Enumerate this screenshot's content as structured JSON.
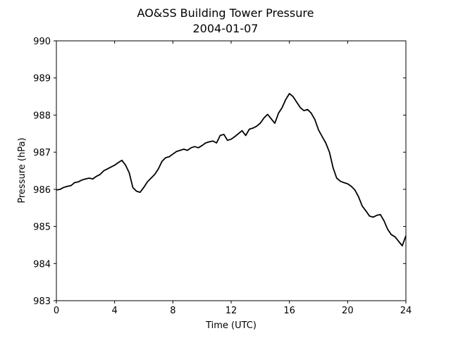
{
  "chart_data": {
    "type": "line",
    "title": "AO&SS Building Tower Pressure",
    "subtitle": "2004-01-07",
    "xlabel": "Time (UTC)",
    "ylabel": "Pressure (hPa)",
    "xlim": [
      0,
      24
    ],
    "ylim": [
      983,
      990
    ],
    "xticks": [
      0,
      4,
      8,
      12,
      16,
      20,
      24
    ],
    "yticks": [
      983,
      984,
      985,
      986,
      987,
      988,
      989,
      990
    ],
    "grid": false,
    "line_color": "#000000",
    "series": [
      {
        "x": [
          0,
          0.25,
          0.5,
          0.75,
          1.0,
          1.25,
          1.5,
          1.75,
          2.0,
          2.25,
          2.5,
          2.75,
          3.0,
          3.25,
          3.5,
          3.75,
          4.0,
          4.25,
          4.5,
          4.75,
          5.0,
          5.25,
          5.5,
          5.75,
          6.0,
          6.25,
          6.5,
          6.75,
          7.0,
          7.25,
          7.5,
          7.75,
          8.0,
          8.25,
          8.5,
          8.75,
          9.0,
          9.25,
          9.5,
          9.75,
          10.0,
          10.25,
          10.5,
          10.75,
          11.0,
          11.25,
          11.5,
          11.75,
          12.0,
          12.25,
          12.5,
          12.75,
          13.0,
          13.25,
          13.5,
          13.75,
          14.0,
          14.25,
          14.5,
          14.75,
          15.0,
          15.25,
          15.5,
          15.75,
          16.0,
          16.25,
          16.5,
          16.75,
          17.0,
          17.25,
          17.5,
          17.75,
          18.0,
          18.25,
          18.5,
          18.75,
          19.0,
          19.25,
          19.5,
          19.75,
          20.0,
          20.25,
          20.5,
          20.75,
          21.0,
          21.25,
          21.5,
          21.75,
          22.0,
          22.25,
          22.5,
          22.75,
          23.0,
          23.25,
          23.5,
          23.75,
          24.0
        ],
        "y": [
          985.98,
          986.0,
          986.05,
          986.08,
          986.1,
          986.18,
          986.2,
          986.25,
          986.28,
          986.3,
          986.28,
          986.35,
          986.4,
          986.5,
          986.55,
          986.6,
          986.65,
          986.72,
          986.78,
          986.65,
          986.45,
          986.05,
          985.95,
          985.92,
          986.05,
          986.2,
          986.3,
          986.4,
          986.55,
          986.75,
          986.85,
          986.88,
          986.95,
          987.02,
          987.05,
          987.08,
          987.05,
          987.12,
          987.15,
          987.12,
          987.18,
          987.25,
          987.28,
          987.3,
          987.25,
          987.45,
          987.48,
          987.32,
          987.35,
          987.42,
          987.5,
          987.58,
          987.45,
          987.62,
          987.65,
          987.7,
          987.78,
          987.92,
          988.02,
          987.9,
          987.78,
          988.05,
          988.2,
          988.42,
          988.58,
          988.5,
          988.35,
          988.2,
          988.12,
          988.15,
          988.05,
          987.88,
          987.6,
          987.42,
          987.25,
          987.0,
          986.58,
          986.3,
          986.22,
          986.18,
          986.15,
          986.08,
          985.98,
          985.8,
          985.55,
          985.42,
          985.28,
          985.25,
          985.3,
          985.32,
          985.15,
          984.92,
          984.78,
          984.72,
          984.6,
          984.48,
          984.75
        ]
      }
    ]
  }
}
